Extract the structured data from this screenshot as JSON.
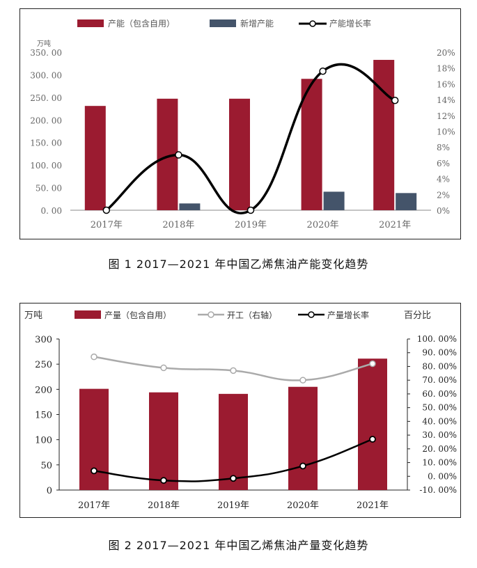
{
  "charts": [
    {
      "caption": "图 1  2017—2021 年中国乙烯焦油产能变化趋势",
      "legend": [
        "产能（包含自用）",
        "新增产能",
        "产能增长率"
      ],
      "colors": {
        "bar1": "#9b1b30",
        "bar2": "#44546a",
        "line": "#000000"
      },
      "left_unit": "万吨",
      "left_ticks": [
        "0. 00",
        "50. 00",
        "100. 00",
        "150. 00",
        "200. 00",
        "250. 00",
        "300. 00",
        "350. 00"
      ],
      "right_ticks": [
        "0%",
        "2%",
        "4%",
        "6%",
        "8%",
        "10%",
        "12%",
        "14%",
        "16%",
        "18%",
        "20%"
      ],
      "chart_data": {
        "type": "bar",
        "categories": [
          "2017年",
          "2018年",
          "2019年",
          "2020年",
          "2021年"
        ],
        "series": [
          {
            "name": "产能（包含自用）",
            "type": "bar",
            "axis": "left",
            "values": [
              231,
              247,
              247,
              291,
              333
            ]
          },
          {
            "name": "新增产能",
            "type": "bar",
            "axis": "left",
            "values": [
              0,
              15,
              0,
              41,
              38
            ]
          },
          {
            "name": "产能增长率",
            "type": "line",
            "axis": "right",
            "values": [
              0,
              7.0,
              0,
              17.6,
              13.9
            ]
          }
        ],
        "ylim_left": [
          0,
          350
        ],
        "ylim_right": [
          0,
          20
        ],
        "grid": false,
        "legend_position": "top"
      }
    },
    {
      "caption": "图 2  2017—2021 年中国乙烯焦油产量变化趋势",
      "legend": [
        "产量（包含自用）",
        "开工（右轴）",
        "产量增长率"
      ],
      "colors": {
        "bar1": "#9b1b30",
        "line_gray": "#aaaaaa",
        "line": "#000000"
      },
      "left_unit": "万吨",
      "right_unit": "百分比",
      "left_ticks": [
        "0",
        "50",
        "100",
        "150",
        "200",
        "250",
        "300"
      ],
      "right_ticks": [
        "-10. 00%",
        "0. 00%",
        "10. 00%",
        "20. 00%",
        "30. 00%",
        "40. 00%",
        "50. 00%",
        "60. 00%",
        "70. 00%",
        "80. 00%",
        "90. 00%",
        "100. 00%"
      ],
      "chart_data": {
        "type": "bar",
        "categories": [
          "2017年",
          "2018年",
          "2019年",
          "2020年",
          "2021年"
        ],
        "series": [
          {
            "name": "产量（包含自用）",
            "type": "bar",
            "axis": "left",
            "values": [
              201,
              194,
              191,
              205,
              261
            ]
          },
          {
            "name": "开工（右轴）",
            "type": "line",
            "axis": "right",
            "values": [
              87,
              79,
              77,
              70,
              82
            ]
          },
          {
            "name": "产量增长率",
            "type": "line",
            "axis": "right",
            "values": [
              4,
              -3,
              -1.5,
              7.5,
              27
            ]
          }
        ],
        "ylim_left": [
          0,
          300
        ],
        "ylim_right": [
          -10,
          100
        ],
        "grid": false,
        "legend_position": "top"
      }
    }
  ]
}
